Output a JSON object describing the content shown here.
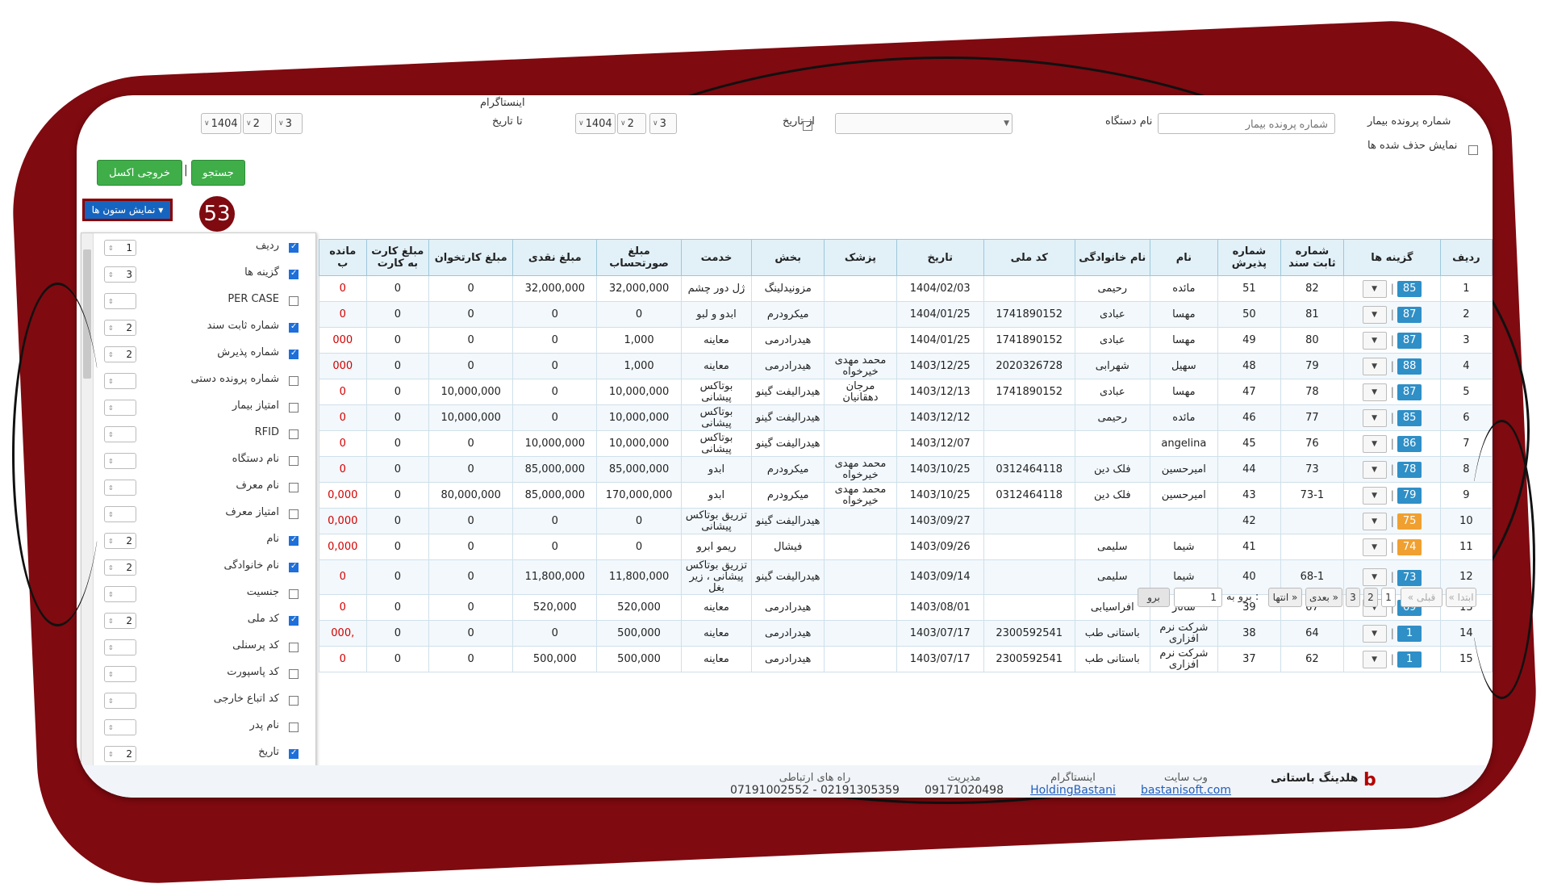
{
  "filters": {
    "file_no_label": "شماره پرونده بیمار",
    "file_no_placeholder": "شماره پرونده بیمار",
    "device_label": "نام دستگاه",
    "from_date_label": "از تاریخ",
    "to_date_label": "تا تاریخ",
    "instagram_label": "اینستاگرام",
    "from_date": {
      "day": "3",
      "month": "2",
      "year": "1404"
    },
    "to_date": {
      "day": "3",
      "month": "2",
      "year": "1404"
    },
    "show_deleted_label": "نمایش حذف شده ها",
    "search_button": "جستجو",
    "excel_button": "خروجی اکسل",
    "separator": "|",
    "columns_button": "نمایش ستون ها"
  },
  "callout_number": "53",
  "column_chooser": [
    {
      "name": "ردیف",
      "checked": true,
      "order": "1"
    },
    {
      "name": "گزینه ها",
      "checked": true,
      "order": "3"
    },
    {
      "name": "PER CASE",
      "checked": false,
      "order": ""
    },
    {
      "name": "شماره ثابت سند",
      "checked": true,
      "order": "2"
    },
    {
      "name": "شماره پذیرش",
      "checked": true,
      "order": "2"
    },
    {
      "name": "شماره پرونده دستی",
      "checked": false,
      "order": ""
    },
    {
      "name": "امتیاز بیمار",
      "checked": false,
      "order": ""
    },
    {
      "name": "RFID",
      "checked": false,
      "order": ""
    },
    {
      "name": "نام دستگاه",
      "checked": false,
      "order": ""
    },
    {
      "name": "نام معرف",
      "checked": false,
      "order": ""
    },
    {
      "name": "امتیاز معرف",
      "checked": false,
      "order": ""
    },
    {
      "name": "نام",
      "checked": true,
      "order": "2"
    },
    {
      "name": "نام خانوادگی",
      "checked": true,
      "order": "2"
    },
    {
      "name": "جنسیت",
      "checked": false,
      "order": ""
    },
    {
      "name": "کد ملی",
      "checked": true,
      "order": "2"
    },
    {
      "name": "کد پرسنلی",
      "checked": false,
      "order": ""
    },
    {
      "name": "کد پاسپورت",
      "checked": false,
      "order": ""
    },
    {
      "name": "کد اتباع خارجی",
      "checked": false,
      "order": ""
    },
    {
      "name": "نام پدر",
      "checked": false,
      "order": ""
    },
    {
      "name": "تاریخ",
      "checked": true,
      "order": "2"
    }
  ],
  "table": {
    "headers": [
      "ردیف",
      "گزینه ها",
      "شماره ثابت سند",
      "شماره پذیرش",
      "نام",
      "نام خانوادگی",
      "کد ملی",
      "تاریخ",
      "پزشک",
      "بخش",
      "خدمت",
      "مبلغ صورتحساب",
      "مبلغ نقدی",
      "مبلغ کارتخوان",
      "مبلغ کارت به کارت",
      "مانده ب"
    ],
    "rows": [
      {
        "idx": "1",
        "badge": "85",
        "badge_color": "#2f8fc7",
        "doc": "82",
        "adm": "51",
        "name": "مائده",
        "family": "رحیمی",
        "nid": "",
        "date": "1404/02/03",
        "doctor": "",
        "dept": "مزونیدلینگ",
        "service": "ژل دور چشم",
        "bill": "32,000,000",
        "cash": "32,000,000",
        "pos": "0",
        "c2c": "0",
        "rem": "0",
        "rem_red": true
      },
      {
        "idx": "2",
        "badge": "87",
        "badge_color": "#2f8fc7",
        "doc": "81",
        "adm": "50",
        "name": "مهسا",
        "family": "عبادی",
        "nid": "1741890152",
        "date": "1404/01/25",
        "doctor": "",
        "dept": "میکرودرم",
        "service": "ابدو و لبو",
        "bill": "0",
        "cash": "0",
        "pos": "0",
        "c2c": "0",
        "rem": "0",
        "rem_red": true
      },
      {
        "idx": "3",
        "badge": "87",
        "badge_color": "#2f8fc7",
        "doc": "80",
        "adm": "49",
        "name": "مهسا",
        "family": "عبادی",
        "nid": "1741890152",
        "date": "1404/01/25",
        "doctor": "",
        "dept": "هیدرادرمی",
        "service": "معاینه",
        "bill": "1,000",
        "cash": "0",
        "pos": "0",
        "c2c": "0",
        "rem": "000",
        "rem_red": true
      },
      {
        "idx": "4",
        "badge": "88",
        "badge_color": "#2f8fc7",
        "doc": "79",
        "adm": "48",
        "name": "سهیل",
        "family": "شهرابی",
        "nid": "2020326728",
        "date": "1403/12/25",
        "doctor": "محمد مهدی خیرخواه",
        "dept": "هیدرادرمی",
        "service": "معاینه",
        "bill": "1,000",
        "cash": "0",
        "pos": "0",
        "c2c": "0",
        "rem": "000",
        "rem_red": true
      },
      {
        "idx": "5",
        "badge": "87",
        "badge_color": "#2f8fc7",
        "doc": "78",
        "adm": "47",
        "name": "مهسا",
        "family": "عبادی",
        "nid": "1741890152",
        "date": "1403/12/13",
        "doctor": "مرجان دهقانیان",
        "dept": "هیدرالیفت گینو",
        "service": "بوتاکس پیشانی",
        "bill": "10,000,000",
        "cash": "0",
        "pos": "10,000,000",
        "c2c": "0",
        "rem": "0",
        "rem_red": true
      },
      {
        "idx": "6",
        "badge": "85",
        "badge_color": "#2f8fc7",
        "doc": "77",
        "adm": "46",
        "name": "مائده",
        "family": "رحیمی",
        "nid": "",
        "date": "1403/12/12",
        "doctor": "",
        "dept": "هیدرالیفت گینو",
        "service": "بوتاکس پیشانی",
        "bill": "10,000,000",
        "cash": "0",
        "pos": "10,000,000",
        "c2c": "0",
        "rem": "0",
        "rem_red": true
      },
      {
        "idx": "7",
        "badge": "86",
        "badge_color": "#2f8fc7",
        "doc": "76",
        "adm": "45",
        "name": "angelina",
        "family": "",
        "nid": "",
        "date": "1403/12/07",
        "doctor": "",
        "dept": "هیدرالیفت گینو",
        "service": "بوتاکس پیشانی",
        "bill": "10,000,000",
        "cash": "10,000,000",
        "pos": "0",
        "c2c": "0",
        "rem": "0",
        "rem_red": true
      },
      {
        "idx": "8",
        "badge": "78",
        "badge_color": "#2f8fc7",
        "doc": "73",
        "adm": "44",
        "name": "امیرحسین",
        "family": "فلک دین",
        "nid": "0312464118",
        "date": "1403/10/25",
        "doctor": "محمد مهدی خیرخواه",
        "dept": "میکرودرم",
        "service": "ابدو",
        "bill": "85,000,000",
        "cash": "85,000,000",
        "pos": "0",
        "c2c": "0",
        "rem": "0",
        "rem_red": true
      },
      {
        "idx": "9",
        "badge": "79",
        "badge_color": "#2f8fc7",
        "doc": "73-1",
        "adm": "43",
        "name": "امیرحسین",
        "family": "فلک دین",
        "nid": "0312464118",
        "date": "1403/10/25",
        "doctor": "محمد مهدی خیرخواه",
        "dept": "میکرودرم",
        "service": "ابدو",
        "bill": "170,000,000",
        "cash": "85,000,000",
        "pos": "80,000,000",
        "c2c": "0",
        "rem": "0,000",
        "rem_red": true
      },
      {
        "idx": "10",
        "badge": "75",
        "badge_color": "#f0a030",
        "doc": "",
        "adm": "42",
        "name": "",
        "family": "",
        "nid": "",
        "date": "1403/09/27",
        "doctor": "",
        "dept": "هیدرالیفت گینو",
        "service": "تزریق بوتاکس پیشانی",
        "bill": "0",
        "cash": "0",
        "pos": "0",
        "c2c": "0",
        "rem": "0,000",
        "rem_red": true
      },
      {
        "idx": "11",
        "badge": "74",
        "badge_color": "#f0a030",
        "doc": "",
        "adm": "41",
        "name": "شیما",
        "family": "سلیمی",
        "nid": "",
        "date": "1403/09/26",
        "doctor": "",
        "dept": "فیشال",
        "service": "ریمو ابرو",
        "bill": "0",
        "cash": "0",
        "pos": "0",
        "c2c": "0",
        "rem": "0,000",
        "rem_red": true
      },
      {
        "idx": "12",
        "badge": "73",
        "badge_color": "#2f8fc7",
        "doc": "68-1",
        "adm": "40",
        "name": "شیما",
        "family": "سلیمی",
        "nid": "",
        "date": "1403/09/14",
        "doctor": "",
        "dept": "هیدرالیفت گینو",
        "service": "تزریق بوتاکس پیشانی ، زیر بغل",
        "bill": "11,800,000",
        "cash": "11,800,000",
        "pos": "0",
        "c2c": "0",
        "rem": "0",
        "rem_red": true
      },
      {
        "idx": "13",
        "badge": "69",
        "badge_color": "#2f8fc7",
        "doc": "67",
        "adm": "39",
        "name": "ساناز",
        "family": "افراسیابی",
        "nid": "",
        "date": "1403/08/01",
        "doctor": "",
        "dept": "هیدرادرمی",
        "service": "معاینه",
        "bill": "520,000",
        "cash": "520,000",
        "pos": "0",
        "c2c": "0",
        "rem": "0",
        "rem_red": true
      },
      {
        "idx": "14",
        "badge": "1",
        "badge_color": "#2f8fc7",
        "doc": "64",
        "adm": "38",
        "name": "شرکت نرم افزاری",
        "family": "باستانی طب",
        "nid": "2300592541",
        "date": "1403/07/17",
        "doctor": "",
        "dept": "هیدرادرمی",
        "service": "معاینه",
        "bill": "500,000",
        "cash": "0",
        "pos": "0",
        "c2c": "0",
        "rem": ",000",
        "rem_red": true
      },
      {
        "idx": "15",
        "badge": "1",
        "badge_color": "#2f8fc7",
        "doc": "62",
        "adm": "37",
        "name": "شرکت نرم افزاری",
        "family": "باستانی طب",
        "nid": "2300592541",
        "date": "1403/07/17",
        "doctor": "",
        "dept": "هیدرادرمی",
        "service": "معاینه",
        "bill": "500,000",
        "cash": "500,000",
        "pos": "0",
        "c2c": "0",
        "rem": "0",
        "rem_red": true
      }
    ]
  },
  "pager": {
    "first": "« ابتدا",
    "prev": "« قبلی",
    "pages": [
      "1",
      "2",
      "3"
    ],
    "next": "بعدی »",
    "last": "انتها »",
    "goto_label": "برو به :",
    "goto_value": "1",
    "go_button": "برو"
  },
  "footer": {
    "brand": "هلدینگ باستانی",
    "website_label": "وب سایت",
    "website": "bastanisoft.com",
    "instagram_label": "اینستاگرام",
    "instagram": "HoldingBastani",
    "manager_label": "مدیریت",
    "manager_phone": "09171020498",
    "contact_label": "راه های ارتباطی",
    "contact_phones": "07191002552 - 02191305359"
  },
  "colors": {
    "frame": "#7f0a10",
    "header_bg": "#e2f1f8",
    "accent_blue": "#1565c0",
    "green": "#3fae49"
  }
}
